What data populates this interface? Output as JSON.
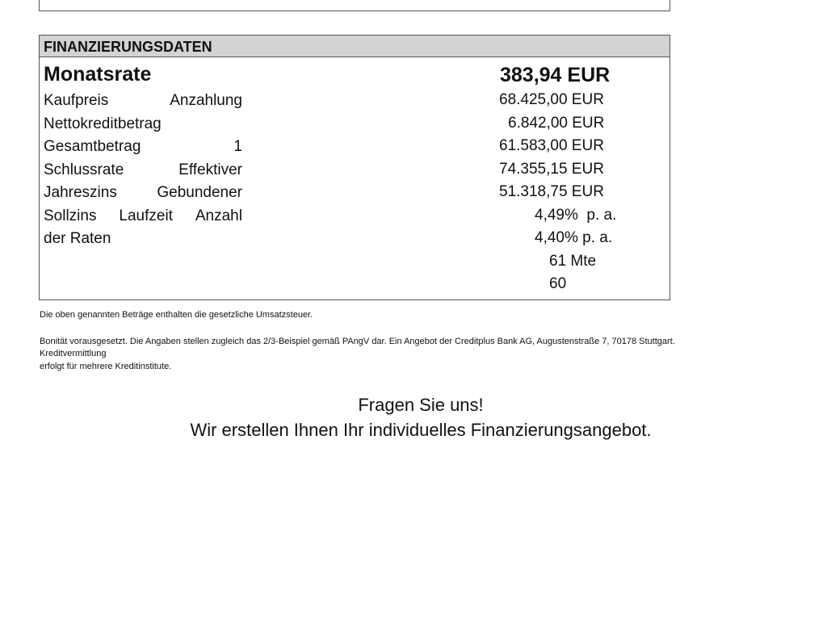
{
  "financing": {
    "title": "FINANZIERUNGSDATEN",
    "monthly_label": "Monatsrate",
    "monthly_value": "383,94 EUR",
    "label_lines": [
      [
        "Kaufpreis",
        "Anzahlung"
      ],
      [
        "Nettokreditbetrag"
      ],
      [
        "Gesamtbetrag",
        "1"
      ],
      [
        "Schlussrate",
        "Effektiver"
      ],
      [
        "Jahreszins",
        "Gebundener"
      ],
      [
        "Sollzins",
        "Laufzeit",
        "Anzahl"
      ],
      [
        "der Raten"
      ]
    ],
    "values": [
      "68.425,00 EUR",
      "6.842,00 EUR",
      "61.583,00 EUR",
      "74.355,15 EUR",
      "51.318,75 EUR",
      "4,49%  p. a.",
      "4,40% p. a.",
      "61 Mte",
      "60"
    ]
  },
  "notes": {
    "vat": "Die oben genannten Beträge enthalten die gesetzliche Umsatzsteuer.",
    "line1": "Bonität vorausgesetzt. Die Angaben stellen zugleich das 2/3-Beispiel gemäß PAngV dar. Ein Angebot der Creditplus Bank AG, Augustenstraße 7, 70178 Stuttgart.",
    "line2": "Kreditvermittlung",
    "line3": "erfolgt für mehrere Kreditinstitute."
  },
  "cta": {
    "line1": "Fragen Sie uns!",
    "line2": "Wir erstellen Ihnen Ihr individuelles Finanzierungsangebot."
  }
}
